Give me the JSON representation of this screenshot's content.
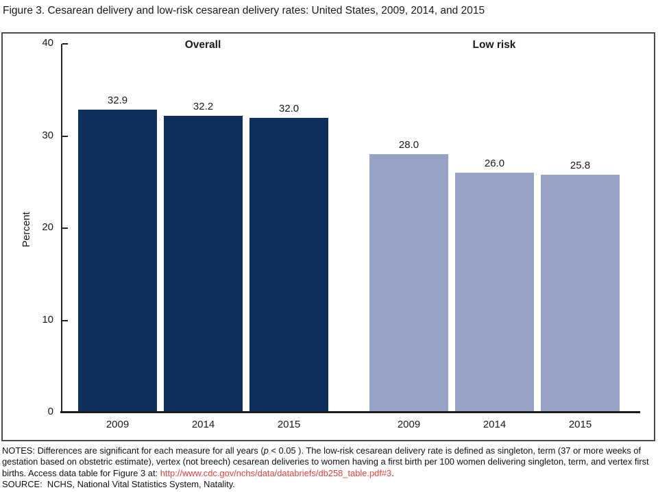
{
  "title": "Figure 3. Cesarean delivery and low-risk cesarean delivery rates: United States, 2009, 2014, and 2015",
  "chart_data": {
    "type": "bar",
    "ylabel": "Percent",
    "ylim": [
      0,
      40
    ],
    "yticks": [
      0,
      10,
      20,
      30,
      40
    ],
    "grid": false,
    "legend_position": "group labels above bars",
    "categories": [
      "2009",
      "2014",
      "2015"
    ],
    "groups": [
      {
        "label": "Overall",
        "color": "#0e2e5c",
        "categories": [
          "2009",
          "2014",
          "2015"
        ],
        "values": [
          32.9,
          32.2,
          32.0
        ],
        "value_labels": [
          "32.9",
          "32.2",
          "32.0"
        ]
      },
      {
        "label": "Low risk",
        "color": "#97a3c5",
        "categories": [
          "2009",
          "2014",
          "2015"
        ],
        "values": [
          28.0,
          26.0,
          25.8
        ],
        "value_labels": [
          "28.0",
          "26.0",
          "25.8"
        ]
      }
    ]
  },
  "notes": {
    "prefix": "NOTES: Differences are significant for each measure for all years (",
    "p_var": "p",
    "body": " < 0.05 ). The low-risk cesarean delivery rate is defined as singleton, term (37 or more weeks of gestation based on obstetric estimate), vertex (not breech) cesarean deliveries to women having a first birth per 100 women delivering singleton, term, and vertex first births. Access data table for Figure 3 at: ",
    "link": "http://www.cdc.gov/nchs/data/databriefs/db258_table.pdf#3",
    "suffix": ".",
    "source": "SOURCE:  NCHS, National Vital Statistics System, Natality."
  },
  "colors": {
    "overall_bar": "#0e2e5c",
    "low_risk_bar": "#97a3c5",
    "link_red": "#e2453e",
    "axis": "#222222",
    "frame_border": "#4a4a4a"
  }
}
